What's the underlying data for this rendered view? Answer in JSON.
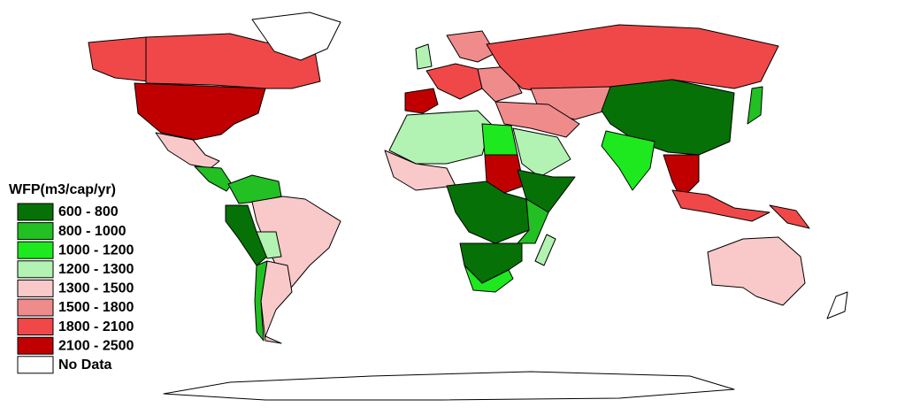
{
  "legend": {
    "title": "WFP(m3/cap/yr)",
    "items": [
      {
        "label": "600 - 800",
        "color": "#067106"
      },
      {
        "label": "800 - 1000",
        "color": "#22c022"
      },
      {
        "label": "1000 - 1200",
        "color": "#1ee81e"
      },
      {
        "label": "1200 - 1300",
        "color": "#b2f2b2"
      },
      {
        "label": "1300 - 1500",
        "color": "#f9c9c9"
      },
      {
        "label": "1500 - 1800",
        "color": "#f08b8b"
      },
      {
        "label": "1800 - 2100",
        "color": "#f04848"
      },
      {
        "label": "2100 - 2500",
        "color": "#c00000"
      },
      {
        "label": "No Data",
        "color": "#ffffff"
      }
    ]
  }
}
